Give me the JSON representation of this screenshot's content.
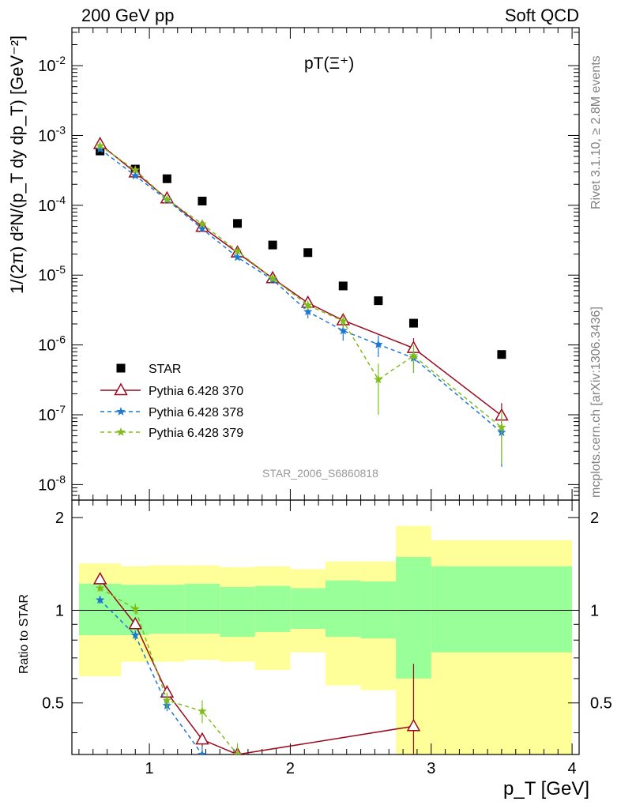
{
  "header": {
    "energy_label": "200 GeV pp",
    "category_label": "Soft QCD"
  },
  "side_labels": {
    "rivet": "Rivet 3.1.10, ≥ 2.8M events",
    "mcplots": "mcplots.cern.ch [arXiv:1306.3436]"
  },
  "top_panel": {
    "title": "pT(Ξ⁺)",
    "ylabel": "1/(2π) d²N/(p_T dy dp_T) [GeV⁻²]",
    "analysis_tag": "STAR_2006_S6860818"
  },
  "bottom_panel": {
    "ylabel": "Ratio to STAR"
  },
  "x_axis_label": "p_T [GeV]",
  "colors": {
    "data": "#000000",
    "py370": "#9b0a1e",
    "py378": "#1e78d2",
    "py379": "#7fbe1a",
    "band_inner": "#99ff99",
    "band_outer": "#ffff99"
  },
  "chart_data": [
    {
      "type": "scatter",
      "panel": "main",
      "xlim": [
        0.45,
        4.05
      ],
      "ylim": [
        6e-09,
        0.035
      ],
      "yscale": "log",
      "yticks": [
        "10^{-8}",
        "10^{-7}",
        "10^{-6}",
        "10^{-5}",
        "10^{-4}",
        "10^{-3}",
        "10^{-2}"
      ],
      "legend_position": "lower-left",
      "series": [
        {
          "name": "STAR",
          "style": "markers",
          "x": [
            0.65,
            0.9,
            1.125,
            1.375,
            1.625,
            1.875,
            2.125,
            2.375,
            2.625,
            2.875,
            3.5
          ],
          "y": [
            0.0006,
            0.00033,
            0.00024,
            0.000115,
            5.5e-05,
            2.7e-05,
            2.1e-05,
            7e-06,
            4.3e-06,
            2.05e-06,
            7.3e-07
          ]
        },
        {
          "name": "Pythia 6.428 370",
          "style": "solid-triangles",
          "x": [
            0.65,
            0.9,
            1.125,
            1.375,
            1.625,
            1.875,
            2.125,
            2.375,
            2.875,
            3.5
          ],
          "y": [
            0.00075,
            0.000295,
            0.000125,
            4.9e-05,
            2.1e-05,
            9e-06,
            4e-06,
            2.25e-06,
            9e-07,
            9.7e-08
          ],
          "err": [
            3e-05,
            1.2e-05,
            5e-06,
            2.5e-06,
            1.2e-06,
            7e-07,
            5e-07,
            5e-07,
            3.5e-07,
            5e-08
          ]
        },
        {
          "name": "Pythia 6.428 378",
          "style": "dashed-stars",
          "x": [
            0.65,
            0.9,
            1.125,
            1.375,
            1.625,
            1.875,
            2.125,
            2.375,
            2.625,
            2.875,
            3.5
          ],
          "y": [
            0.00064,
            0.000265,
            0.00012,
            4.6e-05,
            1.8e-05,
            8.6e-06,
            3e-06,
            1.6e-06,
            1.02e-06,
            6.5e-07,
            5.6e-08
          ],
          "err": [
            3e-05,
            1.2e-05,
            5e-06,
            2.5e-06,
            1.2e-06,
            7e-07,
            6e-07,
            4.5e-07,
            3.5e-07,
            2.5e-07,
            3.8e-08
          ]
        },
        {
          "name": "Pythia 6.428 379",
          "style": "dashed-stars",
          "x": [
            0.65,
            0.9,
            1.125,
            1.375,
            1.625,
            1.875,
            2.125,
            2.375,
            2.625,
            2.875,
            3.5
          ],
          "y": [
            0.00071,
            0.00032,
            0.000122,
            5.4e-05,
            2.2e-05,
            9e-06,
            3.7e-06,
            2.2e-06,
            3.2e-07,
            7e-07,
            6.6e-08
          ],
          "err": [
            3e-05,
            1.5e-05,
            6e-06,
            3e-06,
            1.5e-06,
            8e-07,
            6e-07,
            5e-07,
            2.2e-07,
            3e-07,
            4.6e-08
          ]
        }
      ]
    },
    {
      "type": "line",
      "panel": "ratio",
      "xlim": [
        0.45,
        4.05
      ],
      "ylim": [
        0.34,
        2.28
      ],
      "xticks": [
        "1",
        "2",
        "3",
        "4"
      ],
      "yticks": [
        "0.5",
        "1",
        "2"
      ],
      "reference_line": 1,
      "bands": {
        "edges": [
          0.5,
          0.8,
          1.0,
          1.25,
          1.5,
          1.75,
          2.0,
          2.25,
          2.5,
          2.75,
          3.0,
          4.0
        ],
        "inner": [
          [
            0.83,
            1.22
          ],
          [
            0.83,
            1.21
          ],
          [
            0.84,
            1.21
          ],
          [
            0.84,
            1.22
          ],
          [
            0.82,
            1.19
          ],
          [
            0.85,
            1.2
          ],
          [
            0.87,
            1.18
          ],
          [
            0.82,
            1.25
          ],
          [
            0.81,
            1.24
          ],
          [
            0.6,
            1.49
          ],
          [
            0.73,
            1.39
          ]
        ],
        "outer": [
          [
            0.61,
            1.42
          ],
          [
            0.68,
            1.39
          ],
          [
            0.68,
            1.4
          ],
          [
            0.69,
            1.4
          ],
          [
            0.68,
            1.38
          ],
          [
            0.64,
            1.39
          ],
          [
            0.73,
            1.36
          ],
          [
            0.57,
            1.44
          ],
          [
            0.55,
            1.44
          ],
          [
            0.3,
            1.88
          ],
          [
            0.3,
            1.69
          ]
        ]
      },
      "series": [
        {
          "name": "Pythia 6.428 370",
          "x": [
            0.65,
            0.9,
            1.125,
            1.375,
            1.625,
            2.875
          ],
          "y": [
            1.26,
            0.9,
            0.54,
            0.38,
            0.34,
            0.42
          ],
          "err": [
            0.03,
            0.03,
            0.03,
            0.02,
            0.02,
            0.25
          ]
        },
        {
          "name": "Pythia 6.428 378",
          "x": [
            0.65,
            0.9,
            1.125,
            1.375
          ],
          "y": [
            1.08,
            0.83,
            0.49,
            0.34
          ],
          "err": [
            0.03,
            0.03,
            0.02,
            0.02
          ]
        },
        {
          "name": "Pythia 6.428 379",
          "x": [
            0.65,
            0.9,
            1.125,
            1.375,
            1.625
          ],
          "y": [
            1.18,
            1.01,
            0.51,
            0.47,
            0.34
          ],
          "err": [
            0.03,
            0.04,
            0.03,
            0.04,
            0.03
          ]
        }
      ]
    }
  ]
}
